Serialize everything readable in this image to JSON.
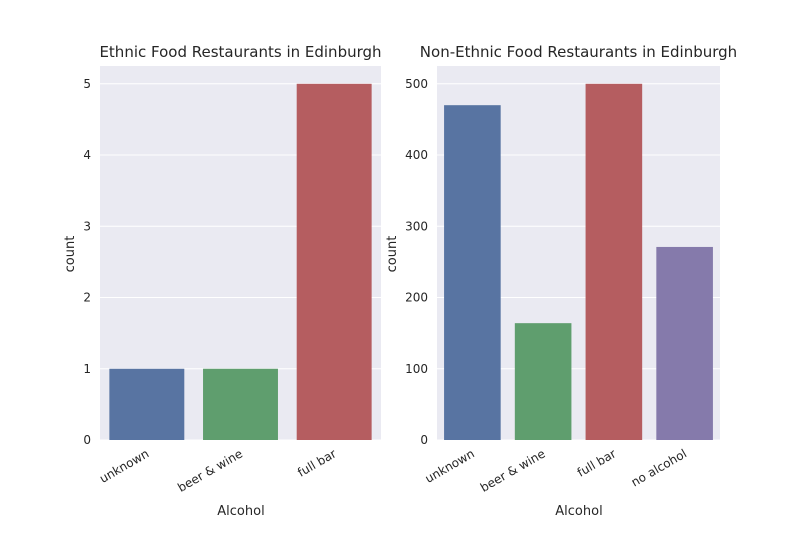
{
  "chart_data": [
    {
      "type": "bar",
      "title": "Ethnic Food Restaurants in Edinburgh",
      "xlabel": "Alcohol",
      "ylabel": "count",
      "categories": [
        "unknown",
        "beer & wine",
        "full bar"
      ],
      "values": [
        1,
        1,
        5
      ],
      "colors": [
        "#5874a2",
        "#5f9e6e",
        "#b55d60"
      ],
      "yticks": [
        0,
        1,
        2,
        3,
        4,
        5
      ],
      "ylim": [
        0,
        5.25
      ],
      "grid": true
    },
    {
      "type": "bar",
      "title": "Non-Ethnic Food Restaurants in Edinburgh",
      "xlabel": "Alcohol",
      "ylabel": "count",
      "categories": [
        "unknown",
        "beer & wine",
        "full bar",
        "no alcohol"
      ],
      "values": [
        470,
        164,
        500,
        271
      ],
      "colors": [
        "#5874a2",
        "#5f9e6e",
        "#b55d60",
        "#857aab"
      ],
      "yticks": [
        0,
        100,
        200,
        300,
        400,
        500
      ],
      "ylim": [
        0,
        525
      ],
      "grid": true
    }
  ],
  "style": {
    "plot_background": "#eaeaf2",
    "grid_color": "#ffffff",
    "text_color": "#262626"
  }
}
